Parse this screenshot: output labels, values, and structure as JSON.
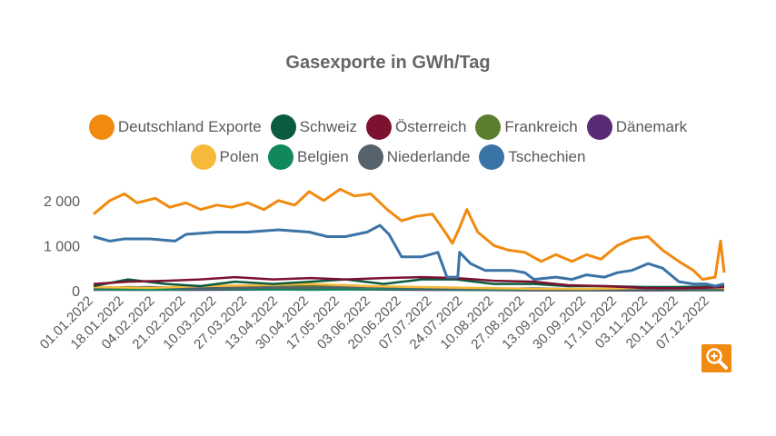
{
  "chart_data": {
    "type": "line",
    "title": "Gasexporte in GWh/Tag",
    "xlabel": "",
    "ylabel": "",
    "ylim": [
      0,
      2500
    ],
    "y_ticks": [
      0,
      1000,
      2000
    ],
    "y_tick_labels": [
      "0",
      "1 000",
      "2 000"
    ],
    "x_tick_labels": [
      "01.01.2022",
      "18.01.2022",
      "04.02.2022",
      "21.02.2022",
      "10.03.2022",
      "27.03.2022",
      "13.04.2022",
      "30.04.2022",
      "17.05.2022",
      "03.06.2022",
      "20.06.2022",
      "07.07.2022",
      "24.07.2022",
      "10.08.2022",
      "27.08.2022",
      "13.09.2022",
      "30.09.2022",
      "17.10.2022",
      "03.11.2022",
      "20.11.2022",
      "07.12.2022"
    ],
    "x_range": [
      "01.01.2022",
      "15.12.2022"
    ],
    "grid": false,
    "legend_position": "top",
    "series": [
      {
        "name": "Deutschland Exporte",
        "color": "#f08a10",
        "points": [
          [
            "01.01.2022",
            1700
          ],
          [
            "10.01.2022",
            2000
          ],
          [
            "18.01.2022",
            2150
          ],
          [
            "25.01.2022",
            1950
          ],
          [
            "04.02.2022",
            2050
          ],
          [
            "12.02.2022",
            1850
          ],
          [
            "21.02.2022",
            1950
          ],
          [
            "01.03.2022",
            1800
          ],
          [
            "10.03.2022",
            1900
          ],
          [
            "18.03.2022",
            1850
          ],
          [
            "27.03.2022",
            1950
          ],
          [
            "05.04.2022",
            1800
          ],
          [
            "13.04.2022",
            2000
          ],
          [
            "22.04.2022",
            1900
          ],
          [
            "30.04.2022",
            2200
          ],
          [
            "08.05.2022",
            2000
          ],
          [
            "17.05.2022",
            2250
          ],
          [
            "25.05.2022",
            2100
          ],
          [
            "03.06.2022",
            2150
          ],
          [
            "12.06.2022",
            1800
          ],
          [
            "20.06.2022",
            1550
          ],
          [
            "28.06.2022",
            1650
          ],
          [
            "07.07.2022",
            1700
          ],
          [
            "14.07.2022",
            1300
          ],
          [
            "18.07.2022",
            1050
          ],
          [
            "22.07.2022",
            1400
          ],
          [
            "26.07.2022",
            1800
          ],
          [
            "01.08.2022",
            1300
          ],
          [
            "10.08.2022",
            1000
          ],
          [
            "18.08.2022",
            900
          ],
          [
            "27.08.2022",
            850
          ],
          [
            "05.09.2022",
            650
          ],
          [
            "13.09.2022",
            800
          ],
          [
            "22.09.2022",
            650
          ],
          [
            "30.09.2022",
            800
          ],
          [
            "08.10.2022",
            700
          ],
          [
            "17.10.2022",
            1000
          ],
          [
            "25.10.2022",
            1150
          ],
          [
            "03.11.2022",
            1200
          ],
          [
            "11.11.2022",
            900
          ],
          [
            "20.11.2022",
            650
          ],
          [
            "28.11.2022",
            450
          ],
          [
            "03.12.2022",
            250
          ],
          [
            "10.12.2022",
            300
          ],
          [
            "13.12.2022",
            1100
          ],
          [
            "15.12.2022",
            400
          ]
        ]
      },
      {
        "name": "Schweiz",
        "color": "#0a5b3f",
        "points": [
          [
            "01.01.2022",
            100
          ],
          [
            "20.01.2022",
            250
          ],
          [
            "10.02.2022",
            150
          ],
          [
            "01.03.2022",
            100
          ],
          [
            "20.03.2022",
            200
          ],
          [
            "10.04.2022",
            150
          ],
          [
            "01.05.2022",
            200
          ],
          [
            "20.05.2022",
            250
          ],
          [
            "10.06.2022",
            150
          ],
          [
            "01.07.2022",
            250
          ],
          [
            "20.07.2022",
            250
          ],
          [
            "10.08.2022",
            150
          ],
          [
            "01.09.2022",
            150
          ],
          [
            "20.09.2022",
            100
          ],
          [
            "10.10.2022",
            100
          ],
          [
            "01.11.2022",
            80
          ],
          [
            "20.11.2022",
            80
          ],
          [
            "15.12.2022",
            100
          ]
        ]
      },
      {
        "name": "Österreich",
        "color": "#7d1130",
        "points": [
          [
            "01.01.2022",
            150
          ],
          [
            "20.01.2022",
            200
          ],
          [
            "10.02.2022",
            220
          ],
          [
            "01.03.2022",
            250
          ],
          [
            "20.03.2022",
            300
          ],
          [
            "10.04.2022",
            250
          ],
          [
            "01.05.2022",
            280
          ],
          [
            "20.05.2022",
            250
          ],
          [
            "10.06.2022",
            280
          ],
          [
            "01.07.2022",
            300
          ],
          [
            "20.07.2022",
            280
          ],
          [
            "10.08.2022",
            220
          ],
          [
            "01.09.2022",
            200
          ],
          [
            "20.09.2022",
            120
          ],
          [
            "10.10.2022",
            100
          ],
          [
            "01.11.2022",
            60
          ],
          [
            "20.11.2022",
            50
          ],
          [
            "15.12.2022",
            80
          ]
        ]
      },
      {
        "name": "Frankreich",
        "color": "#5b7e2f",
        "points": [
          [
            "01.01.2022",
            50
          ],
          [
            "20.01.2022",
            80
          ],
          [
            "10.02.2022",
            60
          ],
          [
            "01.03.2022",
            100
          ],
          [
            "20.03.2022",
            80
          ],
          [
            "10.04.2022",
            120
          ],
          [
            "01.05.2022",
            100
          ],
          [
            "20.05.2022",
            120
          ],
          [
            "10.06.2022",
            80
          ],
          [
            "01.07.2022",
            60
          ],
          [
            "20.07.2022",
            40
          ],
          [
            "10.08.2022",
            20
          ],
          [
            "01.09.2022",
            10
          ],
          [
            "20.09.2022",
            10
          ],
          [
            "10.10.2022",
            10
          ],
          [
            "01.11.2022",
            10
          ],
          [
            "20.11.2022",
            10
          ],
          [
            "15.12.2022",
            10
          ]
        ]
      },
      {
        "name": "Dänemark",
        "color": "#5a2a74",
        "points": [
          [
            "01.01.2022",
            20
          ],
          [
            "01.03.2022",
            20
          ],
          [
            "01.05.2022",
            30
          ],
          [
            "01.07.2022",
            20
          ],
          [
            "01.09.2022",
            10
          ],
          [
            "01.11.2022",
            10
          ],
          [
            "15.12.2022",
            20
          ]
        ]
      },
      {
        "name": "Polen",
        "color": "#f6b93b",
        "points": [
          [
            "01.01.2022",
            80
          ],
          [
            "01.02.2022",
            60
          ],
          [
            "01.03.2022",
            100
          ],
          [
            "01.04.2022",
            120
          ],
          [
            "01.05.2022",
            150
          ],
          [
            "01.06.2022",
            100
          ],
          [
            "01.07.2022",
            80
          ],
          [
            "01.08.2022",
            60
          ],
          [
            "01.09.2022",
            40
          ],
          [
            "01.10.2022",
            40
          ],
          [
            "01.11.2022",
            60
          ],
          [
            "01.12.2022",
            80
          ],
          [
            "15.12.2022",
            60
          ]
        ]
      },
      {
        "name": "Belgien",
        "color": "#10885a",
        "points": [
          [
            "01.01.2022",
            30
          ],
          [
            "01.02.2022",
            20
          ],
          [
            "01.03.2022",
            40
          ],
          [
            "01.04.2022",
            30
          ],
          [
            "01.05.2022",
            20
          ],
          [
            "01.06.2022",
            30
          ],
          [
            "01.07.2022",
            40
          ],
          [
            "01.08.2022",
            20
          ],
          [
            "01.09.2022",
            30
          ],
          [
            "01.10.2022",
            20
          ],
          [
            "01.11.2022",
            30
          ],
          [
            "01.12.2022",
            20
          ],
          [
            "15.12.2022",
            30
          ]
        ]
      },
      {
        "name": "Niederlande",
        "color": "#56626c",
        "points": [
          [
            "01.01.2022",
            60
          ],
          [
            "01.02.2022",
            80
          ],
          [
            "01.03.2022",
            50
          ],
          [
            "01.04.2022",
            70
          ],
          [
            "01.05.2022",
            60
          ],
          [
            "01.06.2022",
            80
          ],
          [
            "01.07.2022",
            60
          ],
          [
            "01.08.2022",
            40
          ],
          [
            "01.09.2022",
            50
          ],
          [
            "01.10.2022",
            30
          ],
          [
            "01.11.2022",
            40
          ],
          [
            "01.12.2022",
            30
          ],
          [
            "15.12.2022",
            40
          ]
        ]
      },
      {
        "name": "Tschechien",
        "color": "#3a73a6",
        "points": [
          [
            "01.01.2022",
            1200
          ],
          [
            "10.01.2022",
            1100
          ],
          [
            "18.01.2022",
            1150
          ],
          [
            "01.02.2022",
            1150
          ],
          [
            "15.02.2022",
            1100
          ],
          [
            "21.02.2022",
            1250
          ],
          [
            "10.03.2022",
            1300
          ],
          [
            "27.03.2022",
            1300
          ],
          [
            "13.04.2022",
            1350
          ],
          [
            "30.04.2022",
            1300
          ],
          [
            "10.05.2022",
            1200
          ],
          [
            "20.05.2022",
            1200
          ],
          [
            "01.06.2022",
            1300
          ],
          [
            "08.06.2022",
            1450
          ],
          [
            "13.06.2022",
            1250
          ],
          [
            "20.06.2022",
            750
          ],
          [
            "01.07.2022",
            750
          ],
          [
            "10.07.2022",
            850
          ],
          [
            "15.07.2022",
            300
          ],
          [
            "21.07.2022",
            300
          ],
          [
            "22.07.2022",
            850
          ],
          [
            "28.07.2022",
            600
          ],
          [
            "05.08.2022",
            450
          ],
          [
            "20.08.2022",
            450
          ],
          [
            "27.08.2022",
            400
          ],
          [
            "01.09.2022",
            250
          ],
          [
            "13.09.2022",
            300
          ],
          [
            "22.09.2022",
            250
          ],
          [
            "30.09.2022",
            350
          ],
          [
            "10.10.2022",
            300
          ],
          [
            "17.10.2022",
            400
          ],
          [
            "25.10.2022",
            450
          ],
          [
            "03.11.2022",
            600
          ],
          [
            "11.11.2022",
            500
          ],
          [
            "20.11.2022",
            200
          ],
          [
            "28.11.2022",
            150
          ],
          [
            "05.12.2022",
            150
          ],
          [
            "10.12.2022",
            100
          ],
          [
            "15.12.2022",
            150
          ]
        ]
      }
    ]
  },
  "zoom": {
    "icon": "zoom-in-icon"
  }
}
